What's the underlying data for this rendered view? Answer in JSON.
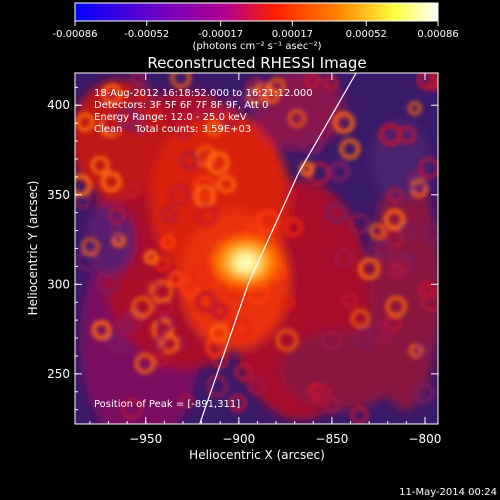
{
  "colorbar": {
    "tick_labels": [
      "-0.00086",
      "-0.00052",
      "-0.00017",
      "0.00017",
      "0.00052",
      "0.00086"
    ],
    "tick_values": [
      -0.00086,
      -0.00052,
      -0.00017,
      0.00017,
      0.00052,
      0.00086
    ],
    "range": [
      -0.00086,
      0.00086
    ],
    "units_label": "(photons cm⁻² s⁻¹ asec⁻²)",
    "colors": [
      "#0000ff",
      "#6a00c8",
      "#b4008c",
      "#ff2000",
      "#ff8000",
      "#ffff40",
      "#ffffff"
    ]
  },
  "chart_data": {
    "type": "heatmap",
    "title": "Reconstructed RHESSI Image",
    "xlabel": "Heliocentric X (arcsec)",
    "ylabel": "Heliocentric Y (arcsec)",
    "xlim": [
      -988,
      -793
    ],
    "ylim": [
      222,
      418
    ],
    "x_ticks": [
      -950,
      -900,
      -850,
      -800
    ],
    "y_ticks": [
      250,
      300,
      350,
      400
    ],
    "annotations": [
      "18-Aug-2012 16:18:52.000 to 16:21:12.000",
      "Detectors: 3F 5F 6F 7F 8F 9F, Att 0",
      "Energy Range: 12.0 - 25.0 keV",
      "Clean    Total counts: 3.59E+03"
    ],
    "peak_label": "Position of Peak = [-891,311]",
    "peak": [
      -891,
      311
    ],
    "limb_line": [
      [
        -921,
        222
      ],
      [
        -895,
        300
      ],
      [
        -868,
        362
      ],
      [
        -837,
        418
      ]
    ],
    "background_color": "#3a1a6a",
    "grid": false
  },
  "footer": {
    "timestamp": "11-May-2014 00:24"
  }
}
